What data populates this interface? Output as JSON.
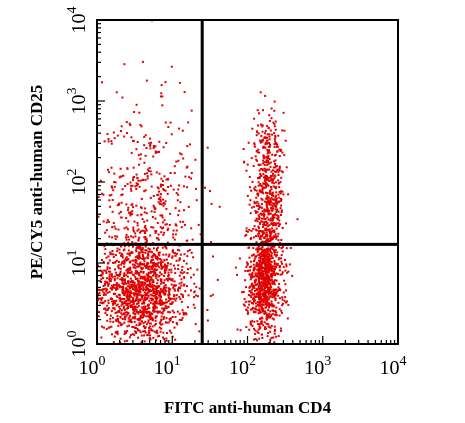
{
  "chart_data": {
    "type": "scatter",
    "xlabel": "FITC anti-human CD4",
    "ylabel": "PE/CY5 anti-human CD25",
    "x_scale": "log",
    "y_scale": "log",
    "xlim": [
      1,
      10000
    ],
    "ylim": [
      1,
      10000
    ],
    "x_ticks": [
      {
        "base": "10",
        "exp": "0",
        "value": 1
      },
      {
        "base": "10",
        "exp": "1",
        "value": 10
      },
      {
        "base": "10",
        "exp": "2",
        "value": 100
      },
      {
        "base": "10",
        "exp": "3",
        "value": 1000
      },
      {
        "base": "10",
        "exp": "4",
        "value": 10000
      }
    ],
    "y_ticks": [
      {
        "base": "10",
        "exp": "0",
        "value": 1
      },
      {
        "base": "10",
        "exp": "1",
        "value": 10
      },
      {
        "base": "10",
        "exp": "2",
        "value": 100
      },
      {
        "base": "10",
        "exp": "3",
        "value": 1000
      },
      {
        "base": "10",
        "exp": "4",
        "value": 10000
      }
    ],
    "quadrant_gates": {
      "x": 25,
      "y": 17
    },
    "grid": false,
    "point_color": "#e00000",
    "line_color": "#000000",
    "populations": [
      {
        "x_center": 3.8,
        "y_center": 4.5,
        "x_spread": 0.32,
        "y_spread": 0.32,
        "count": 1400
      },
      {
        "x_center": 4.5,
        "y_center": 55,
        "x_spread": 0.34,
        "y_spread": 0.55,
        "count": 380
      },
      {
        "x_center": 5,
        "y_center": 500,
        "x_spread": 0.35,
        "y_spread": 0.45,
        "count": 35
      },
      {
        "x_center": 170,
        "y_center": 6,
        "x_spread": 0.12,
        "y_spread": 0.35,
        "count": 900
      },
      {
        "x_center": 190,
        "y_center": 60,
        "x_spread": 0.11,
        "y_spread": 0.38,
        "count": 480
      },
      {
        "x_center": 180,
        "y_center": 280,
        "x_spread": 0.09,
        "y_spread": 0.22,
        "count": 80
      }
    ]
  }
}
